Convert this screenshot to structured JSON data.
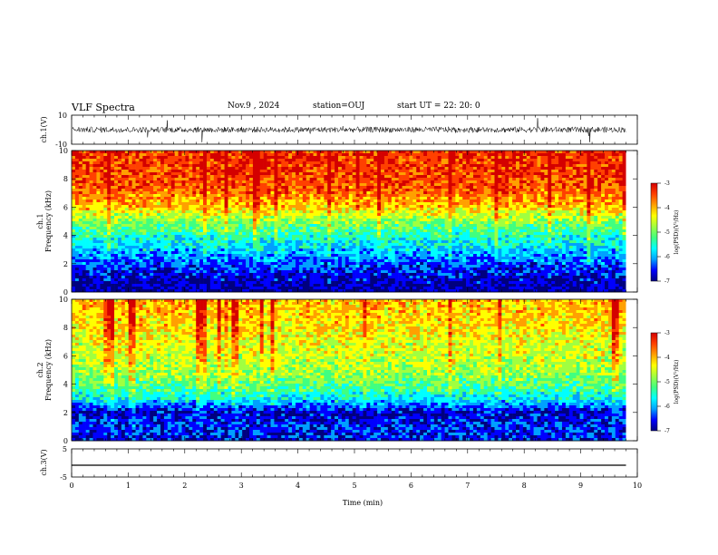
{
  "header": {
    "title": "VLF Spectra",
    "date": "Nov.9 , 2024",
    "station": "station=OUJ",
    "start": "start UT = 22: 20: 0"
  },
  "colors": {
    "colormap": [
      "#00007f",
      "#0000ff",
      "#00a0ff",
      "#00ffff",
      "#40ff80",
      "#a0ff40",
      "#ffff00",
      "#ffa000",
      "#ff4000",
      "#d40000"
    ],
    "trace": "#000000"
  },
  "chart_data": [
    {
      "type": "line",
      "panel": "waveform-ch1",
      "ylabel": "ch.1(V)",
      "ylim": [
        -10,
        10
      ],
      "yticks": [
        "10",
        "-10"
      ],
      "xlim": [
        0,
        10
      ],
      "series": [
        {
          "values_description_only": false,
          "baseline": 0,
          "amplitude_typical": 2,
          "spikes_max": 10
        }
      ]
    },
    {
      "type": "heatmap",
      "panel": "spectrogram-ch1",
      "ylabel": "ch.1\nFrequency (kHz)",
      "ylabel_line1": "ch.1",
      "ylabel_line2": "Frequency (kHz)",
      "ylim": [
        0,
        10
      ],
      "yticks": [
        "0",
        "2",
        "4",
        "6",
        "8",
        "10"
      ],
      "xlim": [
        0,
        9.8
      ],
      "colorbar": {
        "label": "log(PSD)(V²/Hz)",
        "ticks": [
          "-3",
          "-4",
          "-5",
          "-6",
          "-7"
        ],
        "range": [
          -7,
          -3
        ]
      },
      "freq_profile": [
        {
          "f": 0,
          "v": -6.7
        },
        {
          "f": 1,
          "v": -6.6
        },
        {
          "f": 2,
          "v": -6.2
        },
        {
          "f": 3,
          "v": -5.8
        },
        {
          "f": 4,
          "v": -5.4
        },
        {
          "f": 5,
          "v": -4.9
        },
        {
          "f": 6,
          "v": -4.2
        },
        {
          "f": 7,
          "v": -3.8
        },
        {
          "f": 8,
          "v": -3.6
        },
        {
          "f": 9,
          "v": -3.5
        },
        {
          "f": 10,
          "v": -3.5
        }
      ]
    },
    {
      "type": "heatmap",
      "panel": "spectrogram-ch2",
      "ylabel_line1": "ch.2",
      "ylabel_line2": "Frequency (kHz)",
      "ylim": [
        0,
        10
      ],
      "yticks": [
        "0",
        "2",
        "4",
        "6",
        "8",
        "10"
      ],
      "xlim": [
        0,
        9.8
      ],
      "colorbar": {
        "label": "log(PSD)(V²/Hz)",
        "ticks": [
          "-3",
          "-4",
          "-5",
          "-6",
          "-7"
        ],
        "range": [
          -7,
          -3
        ]
      },
      "freq_profile": [
        {
          "f": 0,
          "v": -6.5
        },
        {
          "f": 1,
          "v": -6.3
        },
        {
          "f": 2,
          "v": -6.6
        },
        {
          "f": 3,
          "v": -5.6
        },
        {
          "f": 4,
          "v": -5.1
        },
        {
          "f": 5,
          "v": -4.8
        },
        {
          "f": 6,
          "v": -4.6
        },
        {
          "f": 7,
          "v": -4.5
        },
        {
          "f": 8,
          "v": -4.3
        },
        {
          "f": 9,
          "v": -4.2
        },
        {
          "f": 10,
          "v": -4.1
        }
      ]
    },
    {
      "type": "line",
      "panel": "waveform-ch3",
      "ylabel": "ch.3(V)",
      "ylim": [
        -5,
        5
      ],
      "yticks": [
        "5",
        "-5"
      ],
      "xlim": [
        0,
        10
      ],
      "series": [
        {
          "constant_value": -2
        }
      ]
    }
  ],
  "xaxis": {
    "label": "Time (min)",
    "range": [
      0,
      10
    ],
    "ticks": [
      "0",
      "1",
      "2",
      "3",
      "4",
      "5",
      "6",
      "7",
      "8",
      "9",
      "10"
    ]
  }
}
